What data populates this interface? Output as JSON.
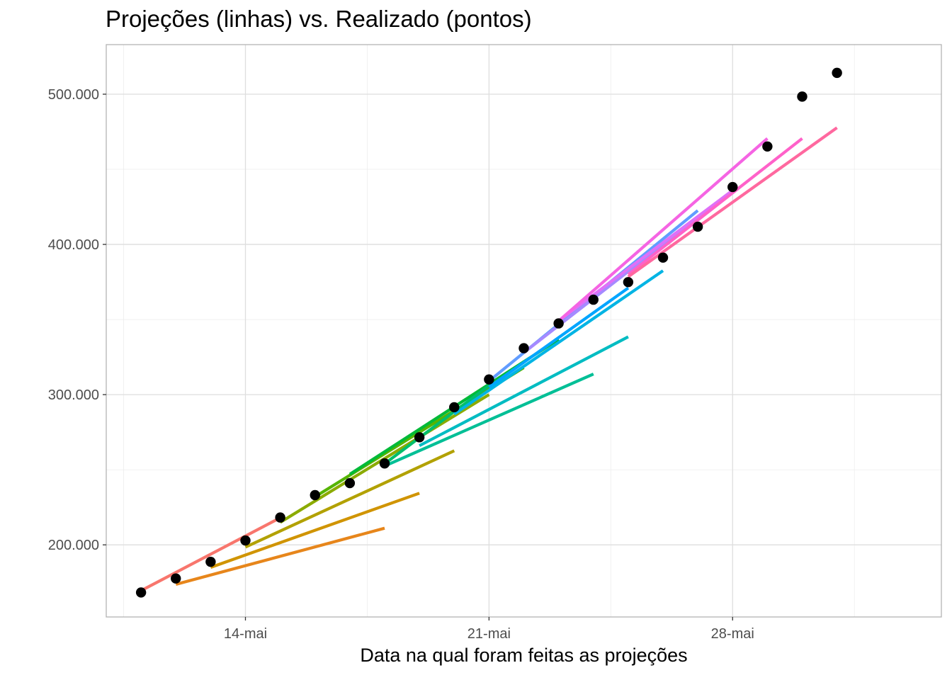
{
  "chart_data": {
    "type": "line",
    "title": "Projeções (linhas) vs. Realizado (pontos)",
    "xlabel": "Data na qual foram feitas as projeções",
    "ylabel": "",
    "x_axis": {
      "kind": "date",
      "range": [
        "2020-05-10",
        "2020-06-03"
      ],
      "ticks": [
        {
          "date": "2020-05-14",
          "label": "14-mai"
        },
        {
          "date": "2020-05-21",
          "label": "21-mai"
        },
        {
          "date": "2020-05-28",
          "label": "28-mai"
        }
      ]
    },
    "y_axis": {
      "range": [
        152000,
        533000
      ],
      "ticks": [
        {
          "value": 200000,
          "label": "200.000"
        },
        {
          "value": 300000,
          "label": "300.000"
        },
        {
          "value": 400000,
          "label": "400.000"
        },
        {
          "value": 500000,
          "label": "500.000"
        }
      ]
    },
    "grid": true,
    "legend": "none",
    "realizado": {
      "color": "#000000",
      "points": [
        {
          "x": "2020-05-11",
          "y": 168300
        },
        {
          "x": "2020-05-12",
          "y": 177600
        },
        {
          "x": "2020-05-13",
          "y": 188700
        },
        {
          "x": "2020-05-14",
          "y": 202900
        },
        {
          "x": "2020-05-15",
          "y": 218200
        },
        {
          "x": "2020-05-16",
          "y": 233100
        },
        {
          "x": "2020-05-17",
          "y": 241100
        },
        {
          "x": "2020-05-18",
          "y": 254200
        },
        {
          "x": "2020-05-19",
          "y": 271600
        },
        {
          "x": "2020-05-20",
          "y": 291600
        },
        {
          "x": "2020-05-21",
          "y": 310100
        },
        {
          "x": "2020-05-22",
          "y": 330900
        },
        {
          "x": "2020-05-23",
          "y": 347400
        },
        {
          "x": "2020-05-24",
          "y": 363200
        },
        {
          "x": "2020-05-25",
          "y": 374900
        },
        {
          "x": "2020-05-26",
          "y": 391200
        },
        {
          "x": "2020-05-27",
          "y": 411800
        },
        {
          "x": "2020-05-28",
          "y": 438200
        },
        {
          "x": "2020-05-29",
          "y": 465200
        },
        {
          "x": "2020-05-30",
          "y": 498400
        },
        {
          "x": "2020-05-31",
          "y": 514200
        }
      ]
    },
    "projecoes": [
      {
        "color": "#F8766D",
        "x": [
          "2020-05-11",
          "2020-05-15"
        ],
        "y": [
          169500,
          218000
        ]
      },
      {
        "color": "#E7861B",
        "x": [
          "2020-05-12",
          "2020-05-18"
        ],
        "y": [
          173700,
          211100
        ]
      },
      {
        "color": "#D09400",
        "x": [
          "2020-05-13",
          "2020-05-19"
        ],
        "y": [
          185000,
          234400
        ]
      },
      {
        "color": "#B2A100",
        "x": [
          "2020-05-14",
          "2020-05-20"
        ],
        "y": [
          198500,
          262600
        ]
      },
      {
        "color": "#8BAB00",
        "x": [
          "2020-05-15",
          "2020-05-21"
        ],
        "y": [
          215000,
          300000
        ]
      },
      {
        "color": "#55B400",
        "x": [
          "2020-05-16",
          "2020-05-22"
        ],
        "y": [
          232000,
          318000
        ]
      },
      {
        "color": "#00BA38",
        "x": [
          "2020-05-17",
          "2020-05-23"
        ],
        "y": [
          247000,
          336900
        ]
      },
      {
        "color": "#00BE6C",
        "x": [
          "2020-05-18",
          "2020-05-21"
        ],
        "y": [
          254000,
          306000
        ]
      },
      {
        "color": "#00BF96",
        "x": [
          "2020-05-18",
          "2020-05-24"
        ],
        "y": [
          252500,
          313700
        ]
      },
      {
        "color": "#00BCC2",
        "x": [
          "2020-05-19",
          "2020-05-25"
        ],
        "y": [
          266000,
          338500
        ]
      },
      {
        "color": "#00B4E4",
        "x": [
          "2020-05-20",
          "2020-05-26"
        ],
        "y": [
          287000,
          382500
        ]
      },
      {
        "color": "#00A5FF",
        "x": [
          "2020-05-21",
          "2020-05-25"
        ],
        "y": [
          305000,
          371000
        ]
      },
      {
        "color": "#619CFF",
        "x": [
          "2020-05-21",
          "2020-05-27"
        ],
        "y": [
          309000,
          422500
        ]
      },
      {
        "color": "#A58AFF",
        "x": [
          "2020-05-22",
          "2020-05-27"
        ],
        "y": [
          328000,
          418000
        ]
      },
      {
        "color": "#DF70F8",
        "x": [
          "2020-05-23",
          "2020-05-28"
        ],
        "y": [
          349000,
          436000
        ]
      },
      {
        "color": "#F564E3",
        "x": [
          "2020-05-23",
          "2020-05-29"
        ],
        "y": [
          349000,
          470500
        ]
      },
      {
        "color": "#FF61C9",
        "x": [
          "2020-05-25",
          "2020-05-30"
        ],
        "y": [
          380000,
          470500
        ]
      },
      {
        "color": "#FF689F",
        "x": [
          "2020-05-25",
          "2020-05-31"
        ],
        "y": [
          378500,
          477700
        ]
      }
    ]
  }
}
